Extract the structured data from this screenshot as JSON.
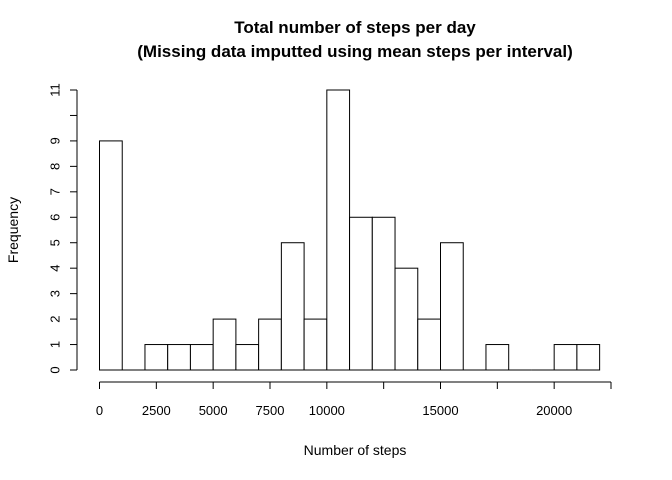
{
  "chart_data": {
    "type": "bar",
    "subtype": "histogram",
    "title": "Total number of steps per day",
    "subtitle": "(Missing data imputted using mean steps per interval)",
    "xlabel": "Number of steps",
    "ylabel": "Frequency",
    "bin_width": 1000,
    "bins": [
      {
        "start": 0,
        "end": 1000,
        "count": 9
      },
      {
        "start": 1000,
        "end": 2000,
        "count": 0
      },
      {
        "start": 2000,
        "end": 3000,
        "count": 1
      },
      {
        "start": 3000,
        "end": 4000,
        "count": 1
      },
      {
        "start": 4000,
        "end": 5000,
        "count": 1
      },
      {
        "start": 5000,
        "end": 6000,
        "count": 2
      },
      {
        "start": 6000,
        "end": 7000,
        "count": 1
      },
      {
        "start": 7000,
        "end": 8000,
        "count": 2
      },
      {
        "start": 8000,
        "end": 9000,
        "count": 5
      },
      {
        "start": 9000,
        "end": 10000,
        "count": 2
      },
      {
        "start": 10000,
        "end": 11000,
        "count": 11
      },
      {
        "start": 11000,
        "end": 12000,
        "count": 6
      },
      {
        "start": 12000,
        "end": 13000,
        "count": 6
      },
      {
        "start": 13000,
        "end": 14000,
        "count": 4
      },
      {
        "start": 14000,
        "end": 15000,
        "count": 2
      },
      {
        "start": 15000,
        "end": 16000,
        "count": 5
      },
      {
        "start": 16000,
        "end": 17000,
        "count": 0
      },
      {
        "start": 17000,
        "end": 18000,
        "count": 1
      },
      {
        "start": 18000,
        "end": 19000,
        "count": 0
      },
      {
        "start": 19000,
        "end": 20000,
        "count": 0
      },
      {
        "start": 20000,
        "end": 21000,
        "count": 1
      },
      {
        "start": 21000,
        "end": 22000,
        "count": 1
      }
    ],
    "xlim": [
      0,
      22000
    ],
    "ylim": [
      0,
      11
    ],
    "x_ticks": [
      0,
      2500,
      5000,
      7500,
      10000,
      12500,
      15000,
      17500,
      20000,
      22500
    ],
    "x_tick_labels": [
      "0",
      "2500",
      "5000",
      "7500",
      "10000",
      "",
      "15000",
      "",
      "20000",
      ""
    ],
    "y_ticks": [
      0,
      1,
      2,
      3,
      4,
      5,
      6,
      7,
      8,
      9,
      10,
      11
    ],
    "y_tick_labels": [
      "0",
      "1",
      "2",
      "3",
      "4",
      "5",
      "6",
      "7",
      "8",
      "9",
      "",
      "11"
    ],
    "grid": false,
    "legend": "none",
    "bar_fill": "#ffffff",
    "bar_stroke": "#000000"
  }
}
